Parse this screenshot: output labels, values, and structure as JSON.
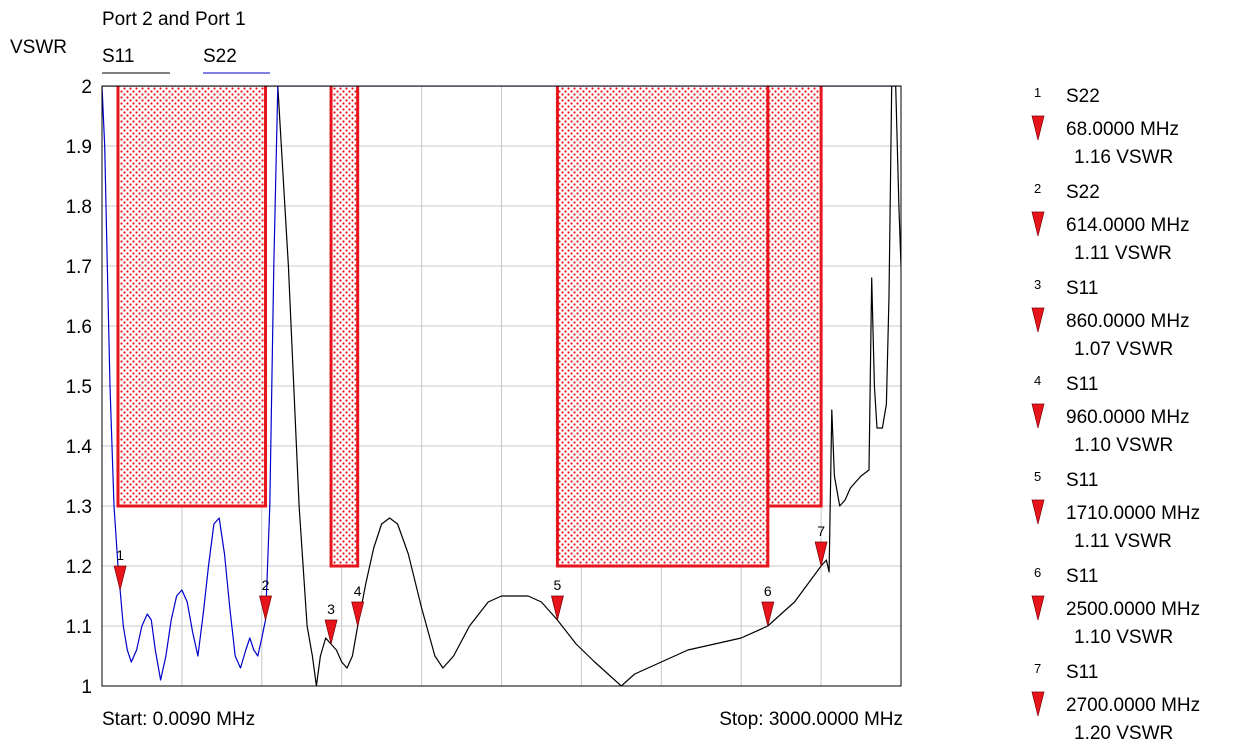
{
  "chart_data": {
    "type": "line",
    "title": "Port 2 and Port 1",
    "ylabel": "VSWR",
    "ylim": [
      1,
      2
    ],
    "y_ticks": [
      "2",
      "1.9",
      "1.8",
      "1.7",
      "1.6",
      "1.5",
      "1.4",
      "1.3",
      "1.2",
      "1.1",
      "1"
    ],
    "xlim": [
      0.009,
      3000
    ],
    "x_unit": "MHz",
    "grid": true,
    "legend_position": "top-left",
    "start_label": "Start: 0.0090 MHz",
    "stop_label": "Stop: 3000.0000 MHz",
    "series": [
      {
        "name": "S11",
        "color": "#000000",
        "points": [
          [
            0.009,
            2.0
          ],
          [
            600,
            2.0
          ],
          [
            660,
            2.0
          ],
          [
            700,
            1.7
          ],
          [
            740,
            1.3
          ],
          [
            770,
            1.1
          ],
          [
            790,
            1.05
          ],
          [
            805,
            1.0
          ],
          [
            820,
            1.05
          ],
          [
            840,
            1.08
          ],
          [
            860,
            1.07
          ],
          [
            880,
            1.06
          ],
          [
            900,
            1.04
          ],
          [
            920,
            1.03
          ],
          [
            940,
            1.05
          ],
          [
            960,
            1.1
          ],
          [
            990,
            1.17
          ],
          [
            1020,
            1.23
          ],
          [
            1050,
            1.27
          ],
          [
            1080,
            1.28
          ],
          [
            1110,
            1.27
          ],
          [
            1150,
            1.22
          ],
          [
            1200,
            1.13
          ],
          [
            1250,
            1.05
          ],
          [
            1280,
            1.03
          ],
          [
            1320,
            1.05
          ],
          [
            1380,
            1.1
          ],
          [
            1450,
            1.14
          ],
          [
            1500,
            1.15
          ],
          [
            1550,
            1.15
          ],
          [
            1600,
            1.15
          ],
          [
            1650,
            1.14
          ],
          [
            1710,
            1.11
          ],
          [
            1780,
            1.07
          ],
          [
            1850,
            1.04
          ],
          [
            1900,
            1.02
          ],
          [
            1950,
            1.0
          ],
          [
            2000,
            1.02
          ],
          [
            2100,
            1.04
          ],
          [
            2200,
            1.06
          ],
          [
            2300,
            1.07
          ],
          [
            2400,
            1.08
          ],
          [
            2500,
            1.1
          ],
          [
            2550,
            1.12
          ],
          [
            2600,
            1.14
          ],
          [
            2650,
            1.17
          ],
          [
            2700,
            1.2
          ],
          [
            2720,
            1.21
          ],
          [
            2730,
            1.19
          ],
          [
            2740,
            1.46
          ],
          [
            2750,
            1.35
          ],
          [
            2770,
            1.3
          ],
          [
            2790,
            1.31
          ],
          [
            2810,
            1.33
          ],
          [
            2850,
            1.35
          ],
          [
            2880,
            1.36
          ],
          [
            2890,
            1.68
          ],
          [
            2900,
            1.5
          ],
          [
            2910,
            1.43
          ],
          [
            2930,
            1.43
          ],
          [
            2945,
            1.47
          ],
          [
            2955,
            1.65
          ],
          [
            2965,
            2.0
          ],
          [
            2980,
            2.0
          ],
          [
            2992,
            1.8
          ],
          [
            3000,
            1.7
          ]
        ]
      },
      {
        "name": "S22",
        "color": "#0000cc",
        "points": [
          [
            0.009,
            2.0
          ],
          [
            10,
            1.9
          ],
          [
            20,
            1.7
          ],
          [
            30,
            1.5
          ],
          [
            45,
            1.3
          ],
          [
            60,
            1.2
          ],
          [
            68,
            1.16
          ],
          [
            80,
            1.1
          ],
          [
            95,
            1.06
          ],
          [
            110,
            1.04
          ],
          [
            130,
            1.06
          ],
          [
            150,
            1.1
          ],
          [
            170,
            1.12
          ],
          [
            185,
            1.11
          ],
          [
            200,
            1.06
          ],
          [
            220,
            1.01
          ],
          [
            240,
            1.05
          ],
          [
            260,
            1.11
          ],
          [
            280,
            1.15
          ],
          [
            300,
            1.16
          ],
          [
            320,
            1.14
          ],
          [
            340,
            1.09
          ],
          [
            360,
            1.05
          ],
          [
            380,
            1.12
          ],
          [
            400,
            1.2
          ],
          [
            420,
            1.27
          ],
          [
            440,
            1.28
          ],
          [
            460,
            1.22
          ],
          [
            480,
            1.13
          ],
          [
            500,
            1.05
          ],
          [
            520,
            1.03
          ],
          [
            540,
            1.06
          ],
          [
            555,
            1.08
          ],
          [
            570,
            1.06
          ],
          [
            585,
            1.05
          ],
          [
            600,
            1.08
          ],
          [
            614,
            1.11
          ],
          [
            630,
            1.3
          ],
          [
            645,
            1.7
          ],
          [
            660,
            2.0
          ],
          [
            3000,
            2.0
          ]
        ]
      }
    ],
    "limit_regions": [
      {
        "x": [
          60,
          614
        ],
        "y_min": 1.3
      },
      {
        "x": [
          860,
          960
        ],
        "y_min": 1.2
      },
      {
        "x": [
          1710,
          2500
        ],
        "y_min": 1.2
      },
      {
        "x": [
          2500,
          2700
        ],
        "y_min": 1.3
      }
    ],
    "markers": [
      {
        "id": "1",
        "trace": "S22",
        "freq": "68.0000 MHz",
        "value": "1.16 VSWR",
        "x": 68,
        "y": 1.16
      },
      {
        "id": "2",
        "trace": "S22",
        "freq": "614.0000 MHz",
        "value": "1.11 VSWR",
        "x": 614,
        "y": 1.11
      },
      {
        "id": "3",
        "trace": "S11",
        "freq": "860.0000 MHz",
        "value": "1.07 VSWR",
        "x": 860,
        "y": 1.07
      },
      {
        "id": "4",
        "trace": "S11",
        "freq": "960.0000 MHz",
        "value": "1.10 VSWR",
        "x": 960,
        "y": 1.1
      },
      {
        "id": "5",
        "trace": "S11",
        "freq": "1710.0000 MHz",
        "value": "1.11 VSWR",
        "x": 1710,
        "y": 1.11
      },
      {
        "id": "6",
        "trace": "S11",
        "freq": "2500.0000 MHz",
        "value": "1.10 VSWR",
        "x": 2500,
        "y": 1.1
      },
      {
        "id": "7",
        "trace": "S11",
        "freq": "2700.0000 MHz",
        "value": "1.20 VSWR",
        "x": 2700,
        "y": 1.2
      }
    ],
    "colors": {
      "limit": "#e8141c",
      "marker": "#e8141c",
      "grid": "#c8c8c8",
      "frame": "#000000"
    }
  }
}
